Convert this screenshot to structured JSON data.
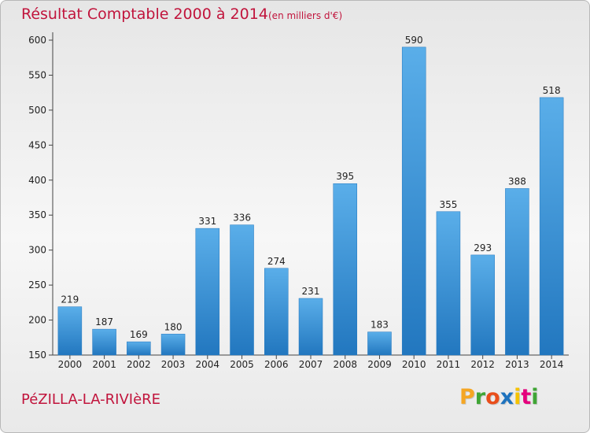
{
  "header": {
    "title": "Résultat Comptable 2000 à 2014",
    "subtitle": "(en milliers d'€)"
  },
  "footer": {
    "commune": "PéZILLA-LA-RIVIèRE",
    "logo_letters": [
      "P",
      "r",
      "o",
      "x",
      "i",
      "t",
      "i"
    ],
    "logo_colors": [
      "#f5a623",
      "#3fa535",
      "#e94e1b",
      "#1e73be",
      "#f5c200",
      "#e5007d",
      "#3fa535"
    ]
  },
  "colors": {
    "bar": "#3a8fd6",
    "bar_light": "#5aaee9",
    "bar_dark": "#2277bf",
    "text_accent": "#c1143c"
  },
  "chart_data": {
    "type": "bar",
    "categories": [
      "2000",
      "2001",
      "2002",
      "2003",
      "2004",
      "2005",
      "2006",
      "2007",
      "2008",
      "2009",
      "2010",
      "2011",
      "2012",
      "2013",
      "2014"
    ],
    "values": [
      219,
      187,
      169,
      180,
      331,
      336,
      274,
      231,
      395,
      183,
      590,
      355,
      293,
      388,
      518
    ],
    "title": "Résultat Comptable 2000 à 2014",
    "ylim": [
      150,
      600
    ],
    "yticks": [
      150,
      200,
      250,
      300,
      350,
      400,
      450,
      500,
      550,
      600
    ],
    "grid": false,
    "legend": "none"
  }
}
